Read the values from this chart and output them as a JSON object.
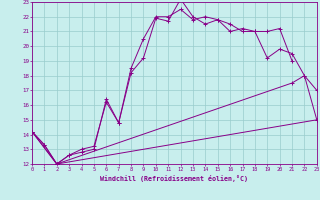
{
  "xlabel": "Windchill (Refroidissement éolien,°C)",
  "xlim": [
    0,
    23
  ],
  "ylim": [
    12,
    23
  ],
  "yticks": [
    12,
    13,
    14,
    15,
    16,
    17,
    18,
    19,
    20,
    21,
    22,
    23
  ],
  "xticks": [
    0,
    1,
    2,
    3,
    4,
    5,
    6,
    7,
    8,
    9,
    10,
    11,
    12,
    13,
    14,
    15,
    16,
    17,
    18,
    19,
    20,
    21,
    22,
    23
  ],
  "bg_color": "#c8eeed",
  "line_color": "#880088",
  "grid_color": "#99cccc",
  "series1_x": [
    0,
    1,
    2,
    3,
    4,
    5,
    6,
    7,
    8,
    9,
    10,
    11,
    12,
    13,
    14,
    15,
    16,
    17,
    18,
    19,
    20,
    21
  ],
  "series1_y": [
    14.2,
    13.3,
    12.0,
    12.6,
    12.8,
    13.0,
    16.4,
    14.8,
    18.2,
    19.2,
    21.9,
    21.7,
    23.2,
    22.0,
    21.5,
    21.8,
    21.0,
    21.2,
    21.0,
    21.0,
    21.2,
    19.0
  ],
  "series2_x": [
    0,
    1,
    2,
    3,
    4,
    5,
    6,
    7,
    8,
    9,
    10,
    11,
    12,
    13,
    14,
    15,
    16,
    17,
    18,
    19,
    20,
    21,
    22,
    23
  ],
  "series2_y": [
    14.2,
    13.3,
    12.0,
    12.6,
    13.0,
    13.2,
    16.2,
    14.8,
    18.5,
    20.5,
    22.0,
    22.0,
    22.5,
    21.8,
    22.0,
    21.8,
    21.5,
    21.0,
    21.0,
    19.2,
    19.8,
    19.5,
    18.0,
    15.0
  ],
  "series3_x": [
    0,
    2,
    23
  ],
  "series3_y": [
    14.2,
    12.0,
    15.0
  ],
  "series4_x": [
    0,
    2,
    21,
    22,
    23
  ],
  "series4_y": [
    14.2,
    12.0,
    17.5,
    18.0,
    17.0
  ]
}
